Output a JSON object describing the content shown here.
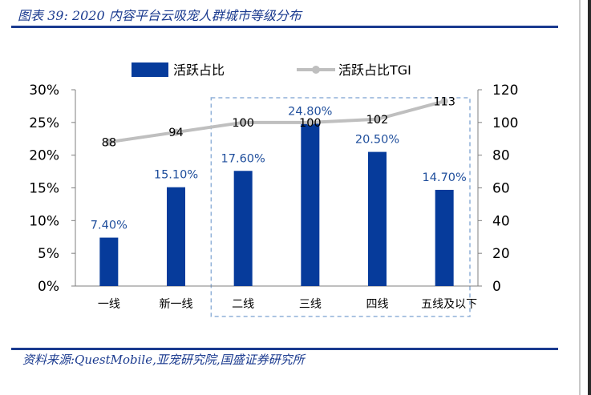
{
  "header": {
    "title": "图表 39:  2020 内容平台云吸宠人群城市等级分布"
  },
  "footer": {
    "source": "资料来源:QuestMobile,亚宠研究院,国盛证券研究所"
  },
  "colors": {
    "accent": "#1a3a8f",
    "bar": "#063b9b",
    "line": "#bfbfbf",
    "highlight_box": "#8fb0d8",
    "label_text": "#1f4e9c"
  },
  "chart_data": {
    "type": "bar",
    "categories": [
      "一线",
      "新一线",
      "二线",
      "三线",
      "四线",
      "五线及以下"
    ],
    "series": [
      {
        "name": "活跃占比",
        "axis": "left",
        "kind": "bar",
        "values": [
          7.4,
          15.1,
          17.6,
          24.8,
          20.5,
          14.7
        ],
        "labels": [
          "7.40%",
          "15.10%",
          "17.60%",
          "24.80%",
          "20.50%",
          "14.70%"
        ]
      },
      {
        "name": "活跃占比TGI",
        "axis": "right",
        "kind": "line",
        "values": [
          88,
          94,
          100,
          100,
          102,
          113
        ],
        "labels": [
          "88",
          "94",
          "100",
          "100",
          "102",
          "113"
        ]
      }
    ],
    "y_left": {
      "lim": [
        0,
        30
      ],
      "ticks": [
        0,
        5,
        10,
        15,
        20,
        25,
        30
      ],
      "tick_labels": [
        "0%",
        "5%",
        "10%",
        "15%",
        "20%",
        "25%",
        "30%"
      ]
    },
    "y_right": {
      "lim": [
        0,
        120
      ],
      "ticks": [
        0,
        20,
        40,
        60,
        80,
        100,
        120
      ],
      "tick_labels": [
        "0",
        "20",
        "40",
        "60",
        "80",
        "100",
        "120"
      ]
    },
    "legend": [
      "活跃占比",
      "活跃占比TGI"
    ],
    "legend_position": "top-center",
    "highlight_categories": [
      "二线",
      "三线",
      "四线",
      "五线及以下"
    ],
    "grid": false
  }
}
